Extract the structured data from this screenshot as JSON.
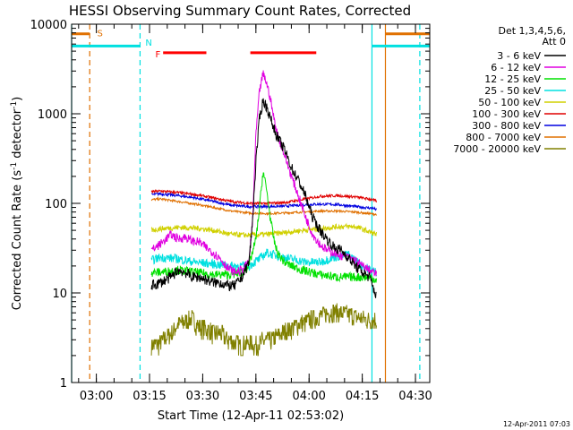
{
  "chart_data": {
    "type": "line",
    "title": "HESSI Observing Summary Count Rates, Corrected",
    "xlabel": "Start Time (12-Apr-11 02:53:02)",
    "ylabel_main": "Corrected Count Rate (s",
    "ylabel_sup1": "-1",
    "ylabel_mid": " detector",
    "ylabel_sup2": "-1",
    "ylabel_end": ")",
    "x_unit": "minutes after 02:53:02",
    "xlim": [
      0,
      101
    ],
    "y_scale": "log",
    "ylim": [
      1,
      10000
    ],
    "x_ticks": [
      {
        "label": "03:00",
        "t": 6.97
      },
      {
        "label": "03:15",
        "t": 21.97
      },
      {
        "label": "03:30",
        "t": 36.97
      },
      {
        "label": "03:45",
        "t": 51.97
      },
      {
        "label": "04:00",
        "t": 66.97
      },
      {
        "label": "04:15",
        "t": 81.97
      },
      {
        "label": "04:30",
        "t": 96.97
      }
    ],
    "y_ticks": [
      {
        "label": "1",
        "v": 1
      },
      {
        "label": "10",
        "v": 10
      },
      {
        "label": "100",
        "v": 100
      },
      {
        "label": "1000",
        "v": 1000
      },
      {
        "label": "10000",
        "v": 10000
      }
    ],
    "legend": {
      "header1": "Det 1,3,4,5,6,",
      "header2": "Att 0",
      "position": "top-right, outside plot"
    },
    "series": [
      {
        "name": "3 - 6 keV",
        "color": "#000000",
        "t": [
          22.5,
          25,
          28,
          30,
          32,
          34,
          36,
          38,
          40,
          42,
          44,
          46,
          48,
          50,
          51,
          52,
          53,
          54,
          55,
          56,
          57,
          58,
          60,
          62,
          64,
          66,
          67,
          68,
          70,
          72,
          74,
          76,
          78,
          80,
          82,
          84,
          86
        ],
        "v": [
          12,
          13,
          15,
          18,
          17,
          15,
          15,
          14,
          13,
          13,
          12,
          12,
          15,
          22,
          60,
          300,
          900,
          1400,
          1200,
          900,
          700,
          550,
          400,
          250,
          180,
          120,
          90,
          70,
          50,
          40,
          32,
          30,
          25,
          20,
          17,
          15,
          9
        ]
      },
      {
        "name": "6 - 12 keV",
        "color": "#e000e0",
        "t": [
          22.5,
          25,
          28,
          30,
          32,
          34,
          36,
          38,
          40,
          42,
          44,
          46,
          48,
          50,
          51,
          52,
          53,
          54,
          55,
          56,
          57,
          58,
          60,
          62,
          64,
          66,
          68,
          70,
          72,
          74,
          76,
          78,
          80,
          82,
          84,
          86
        ],
        "v": [
          30,
          35,
          45,
          40,
          42,
          38,
          37,
          32,
          28,
          24,
          19,
          17,
          18,
          22,
          60,
          600,
          1800,
          2800,
          2200,
          1500,
          900,
          600,
          350,
          200,
          120,
          70,
          45,
          35,
          30,
          28,
          26,
          25,
          23,
          20,
          18,
          16
        ]
      },
      {
        "name": "12 - 25 keV",
        "color": "#00e000",
        "t": [
          22.5,
          25,
          30,
          35,
          40,
          45,
          48,
          50,
          52,
          53,
          54,
          55,
          56,
          57,
          58,
          60,
          62,
          65,
          70,
          75,
          80,
          84,
          86
        ],
        "v": [
          17,
          17,
          18,
          17,
          16,
          16,
          17,
          20,
          40,
          90,
          230,
          140,
          70,
          40,
          28,
          22,
          20,
          18,
          16,
          15,
          15,
          15,
          14
        ]
      },
      {
        "name": "25 - 50 keV",
        "color": "#00e0e0",
        "t": [
          22.5,
          25,
          30,
          35,
          40,
          45,
          50,
          53,
          55,
          58,
          62,
          66,
          70,
          74,
          78,
          82,
          86
        ],
        "v": [
          23,
          25,
          24,
          22,
          21,
          20,
          20,
          24,
          28,
          26,
          24,
          22,
          22,
          25,
          27,
          20,
          17
        ]
      },
      {
        "name": "50 - 100 keV",
        "color": "#d0d000",
        "t": [
          22.5,
          25,
          30,
          35,
          40,
          45,
          50,
          55,
          60,
          65,
          70,
          75,
          80,
          86
        ],
        "v": [
          50,
          52,
          54,
          53,
          50,
          45,
          44,
          45,
          47,
          50,
          52,
          55,
          55,
          45
        ]
      },
      {
        "name": "100 - 300 keV",
        "color": "#e00000",
        "t": [
          22.5,
          25,
          30,
          35,
          40,
          45,
          50,
          55,
          60,
          65,
          70,
          75,
          80,
          85,
          86
        ],
        "v": [
          135,
          137,
          132,
          125,
          115,
          105,
          100,
          100,
          102,
          110,
          120,
          122,
          118,
          110,
          105
        ]
      },
      {
        "name": "300 - 800 keV",
        "color": "#0000e0",
        "t": [
          22.5,
          25,
          30,
          35,
          40,
          45,
          50,
          55,
          60,
          65,
          70,
          75,
          80,
          85,
          86
        ],
        "v": [
          125,
          128,
          122,
          115,
          105,
          95,
          92,
          92,
          93,
          96,
          98,
          97,
          92,
          88,
          85
        ]
      },
      {
        "name": "800 - 7000 keV",
        "color": "#e07000",
        "t": [
          22.5,
          25,
          30,
          35,
          40,
          45,
          50,
          55,
          60,
          65,
          70,
          75,
          80,
          85,
          86
        ],
        "v": [
          110,
          112,
          105,
          98,
          90,
          82,
          78,
          77,
          78,
          80,
          82,
          82,
          80,
          76,
          75
        ]
      },
      {
        "name": "7000 - 20000 keV",
        "color": "#808000",
        "t": [
          22.5,
          25,
          28,
          30,
          32,
          34,
          36,
          38,
          40,
          42,
          44,
          46,
          48,
          50,
          52,
          54,
          56,
          58,
          60,
          62,
          64,
          66,
          68,
          70,
          72,
          74,
          76,
          78,
          80,
          82,
          84,
          86
        ],
        "v": [
          2.6,
          2.8,
          3.5,
          4.5,
          4.8,
          5.2,
          4.2,
          4.0,
          3.6,
          3.5,
          3.0,
          2.8,
          2.6,
          2.8,
          2.6,
          2.9,
          3.0,
          3.3,
          3.8,
          4.0,
          4.5,
          4.8,
          5.2,
          5.5,
          6.0,
          6.2,
          6.0,
          5.8,
          5.5,
          5.2,
          5.0,
          5.0
        ]
      }
    ],
    "time_markers": [
      {
        "kind": "night",
        "t": 0,
        "style": "solid",
        "color": "#00e0e0"
      },
      {
        "kind": "SAA",
        "t": 5.1,
        "style": "dashed",
        "color": "#e07000"
      },
      {
        "kind": "night",
        "t": 19.3,
        "style": "dashed",
        "color": "#00e0e0"
      },
      {
        "kind": "night",
        "t": 84.7,
        "style": "solid",
        "color": "#00e0e0"
      },
      {
        "kind": "SAA",
        "t": 88.5,
        "style": "solid",
        "color": "#e07000"
      },
      {
        "kind": "night",
        "t": 98.2,
        "style": "dashed",
        "color": "#00e0e0"
      }
    ],
    "bars": [
      {
        "kind": "SAA",
        "color": "#e07000",
        "level": 7800,
        "t": [
          0,
          5.1
        ]
      },
      {
        "kind": "SAA",
        "color": "#e07000",
        "level": 7800,
        "t": [
          88.5,
          101
        ]
      },
      {
        "kind": "Night",
        "color": "#00e0e0",
        "level": 5700,
        "t": [
          0,
          19.3
        ]
      },
      {
        "kind": "Night",
        "color": "#00e0e0",
        "level": 5700,
        "t": [
          84.7,
          101
        ]
      },
      {
        "kind": "Flare",
        "color": "#ff0000",
        "level": 4800,
        "t": [
          25.8,
          38.0
        ]
      },
      {
        "kind": "Flare",
        "color": "#ff0000",
        "level": 4800,
        "t": [
          50.4,
          69.0
        ]
      }
    ],
    "bar_labels": [
      {
        "text": "S",
        "color": "#e07000",
        "t": 7.2,
        "level": 8000
      },
      {
        "text": "N",
        "color": "#00e0e0",
        "t": 20.8,
        "level": 6300
      },
      {
        "text": "F",
        "color": "#ff0000",
        "t": 23.6,
        "level": 4700
      }
    ],
    "footer": "12-Apr-2011 07:03"
  }
}
